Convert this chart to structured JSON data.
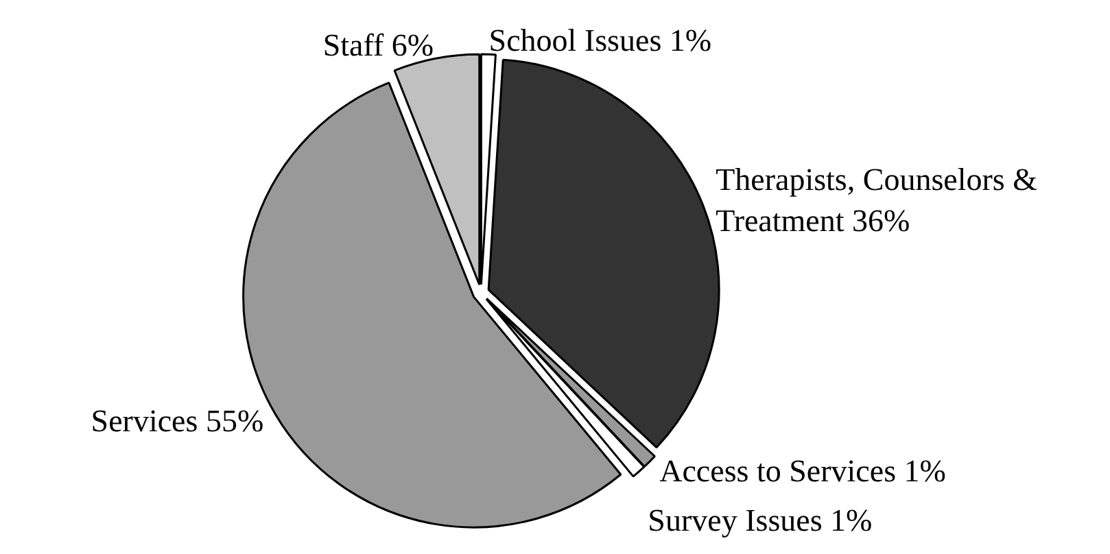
{
  "chart_data": {
    "type": "pie",
    "categories": [
      "School Issues",
      "Therapists, Counselors & Treatment",
      "Access to Services",
      "Survey Issues",
      "Services",
      "Staff"
    ],
    "values": [
      1,
      36,
      1,
      1,
      55,
      6
    ],
    "colors": [
      "#ffffff",
      "#333333",
      "#999999",
      "#ffffff",
      "#999999",
      "#c0c0c0"
    ],
    "value_labels": [
      "1%",
      "36%",
      "1%",
      "1%",
      "55%",
      "6%"
    ]
  }
}
